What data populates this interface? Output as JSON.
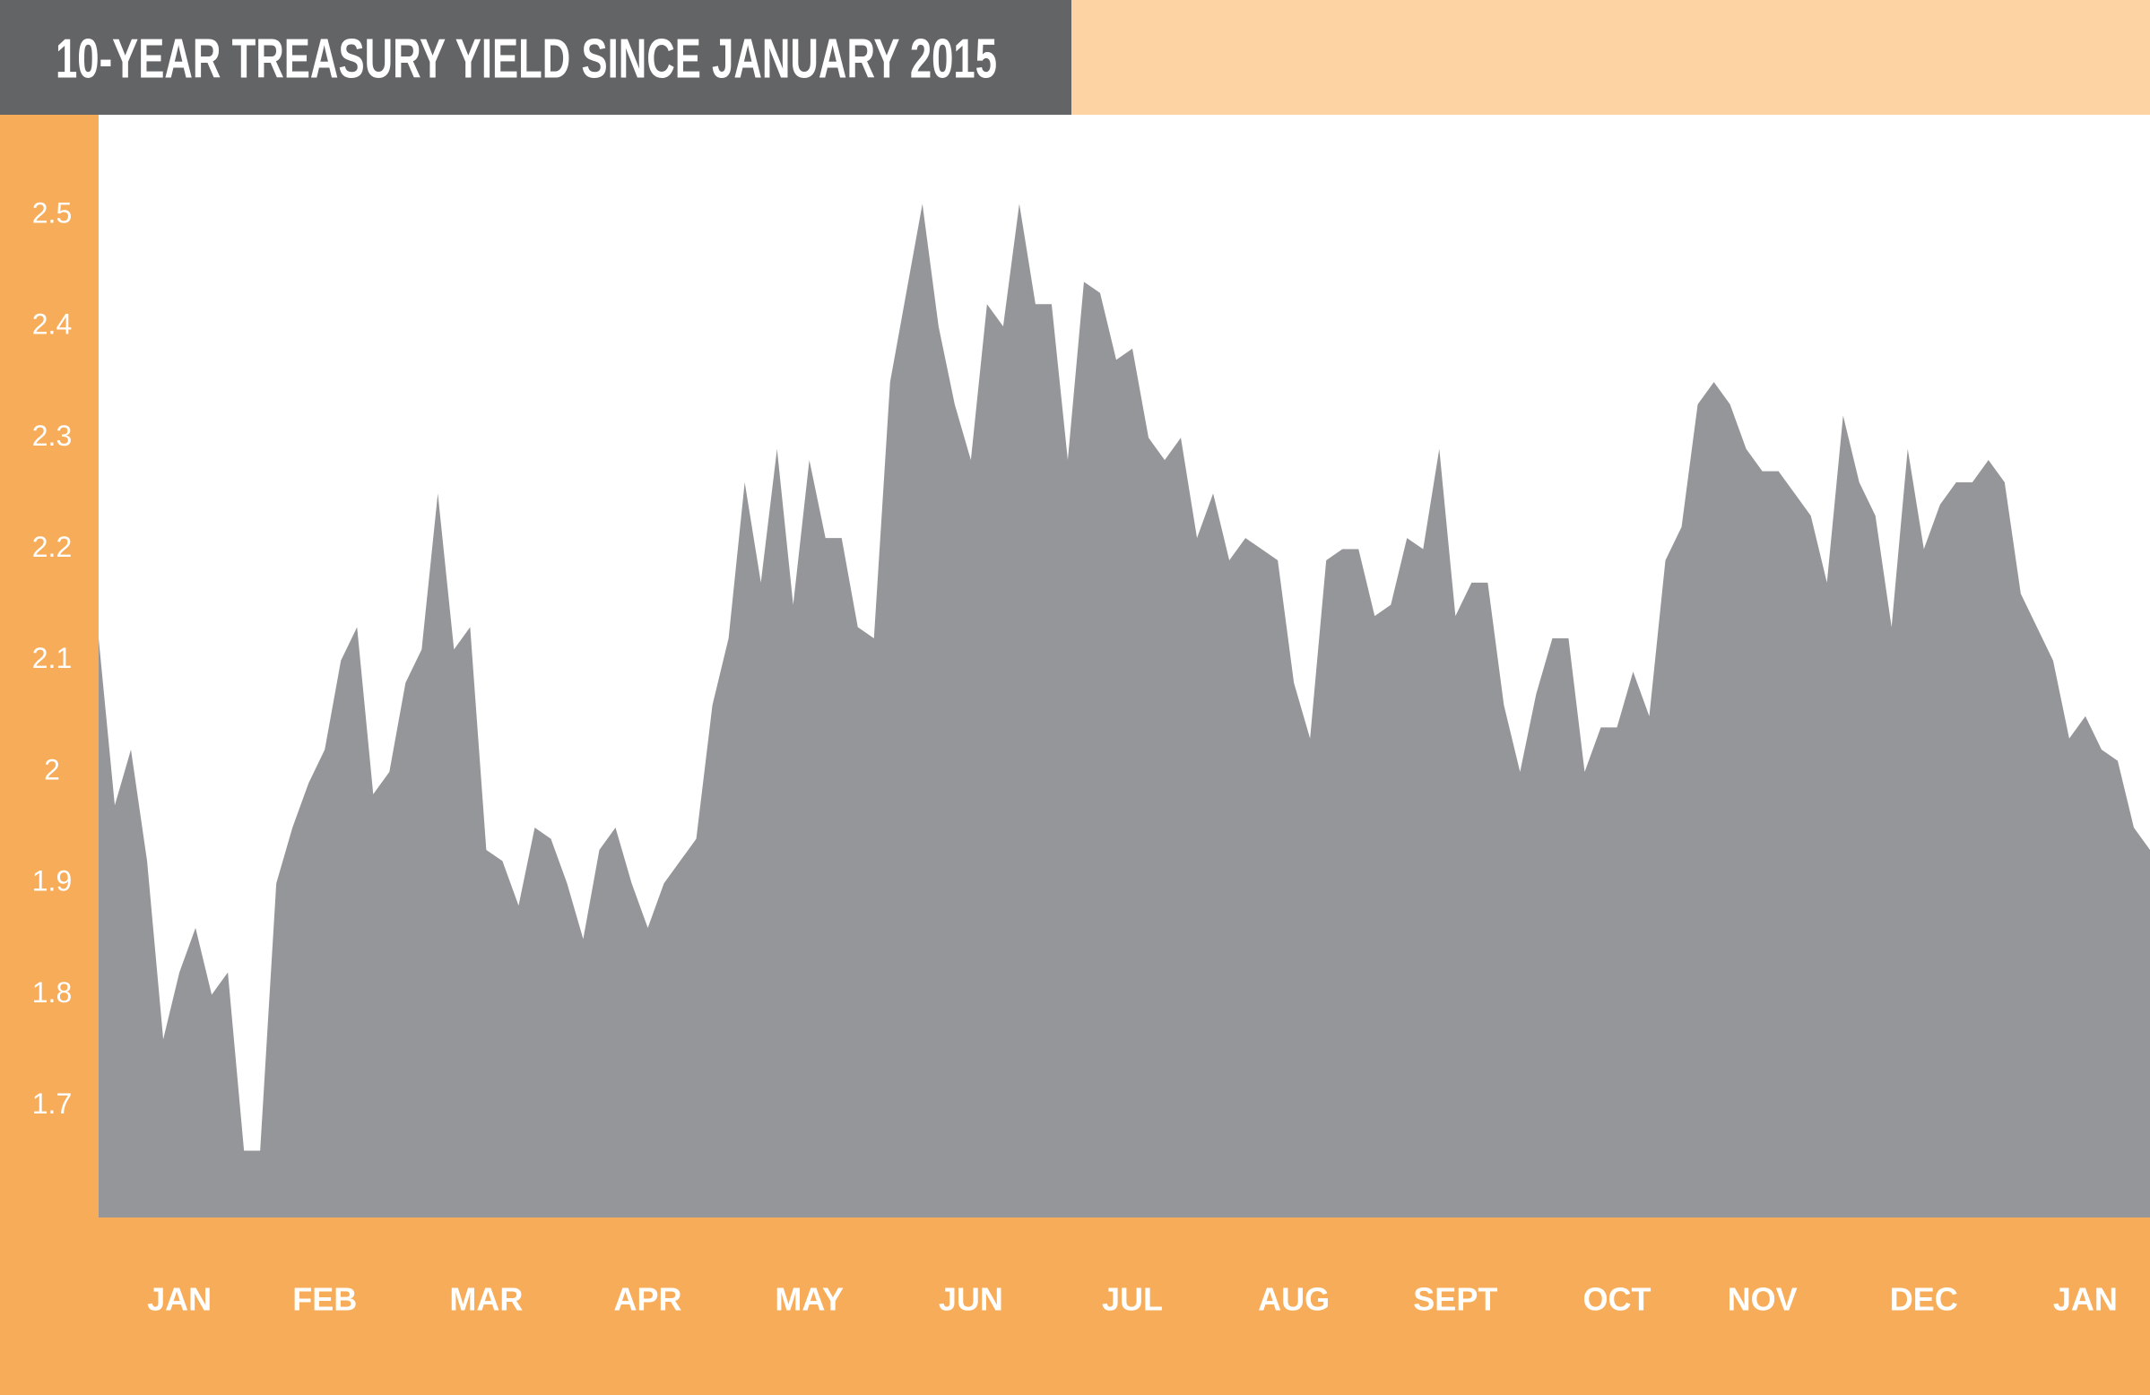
{
  "chart_data": {
    "type": "area",
    "title": "10-YEAR TREASURY YIELD SINCE JANUARY 2015",
    "categories": [
      null,
      null,
      null,
      null,
      null,
      "JAN",
      null,
      null,
      null,
      null,
      null,
      null,
      null,
      null,
      "FEB",
      null,
      null,
      null,
      null,
      null,
      null,
      null,
      null,
      null,
      "MAR",
      null,
      null,
      null,
      null,
      null,
      null,
      null,
      null,
      null,
      "APR",
      null,
      null,
      null,
      null,
      null,
      null,
      null,
      null,
      null,
      "MAY",
      null,
      null,
      null,
      null,
      null,
      null,
      null,
      null,
      null,
      "JUN",
      null,
      null,
      null,
      null,
      null,
      null,
      null,
      null,
      null,
      "JUL",
      null,
      null,
      null,
      null,
      null,
      null,
      null,
      null,
      null,
      "AUG",
      null,
      null,
      null,
      null,
      null,
      null,
      null,
      null,
      null,
      "SEPT",
      null,
      null,
      null,
      null,
      null,
      null,
      null,
      null,
      null,
      "OCT",
      null,
      null,
      null,
      null,
      null,
      null,
      null,
      null,
      "NOV",
      null,
      null,
      null,
      null,
      null,
      null,
      null,
      null,
      null,
      "DEC",
      null,
      null,
      null,
      null,
      null,
      null,
      null,
      null,
      null,
      "JAN",
      null,
      null,
      null,
      null
    ],
    "values": [
      2.12,
      1.97,
      2.02,
      1.92,
      1.76,
      1.82,
      1.86,
      1.8,
      1.82,
      1.66,
      1.66,
      1.9,
      1.95,
      1.99,
      2.02,
      2.1,
      2.13,
      1.98,
      2.0,
      2.08,
      2.11,
      2.25,
      2.11,
      2.13,
      1.93,
      1.92,
      1.88,
      1.95,
      1.94,
      1.9,
      1.85,
      1.93,
      1.95,
      1.9,
      1.86,
      1.9,
      1.92,
      1.94,
      2.06,
      2.12,
      2.26,
      2.17,
      2.29,
      2.15,
      2.28,
      2.21,
      2.21,
      2.13,
      2.12,
      2.35,
      2.43,
      2.51,
      2.4,
      2.33,
      2.28,
      2.42,
      2.4,
      2.51,
      2.42,
      2.42,
      2.28,
      2.44,
      2.43,
      2.37,
      2.38,
      2.3,
      2.28,
      2.3,
      2.21,
      2.25,
      2.19,
      2.21,
      2.2,
      2.19,
      2.08,
      2.03,
      2.19,
      2.2,
      2.2,
      2.14,
      2.15,
      2.21,
      2.2,
      2.29,
      2.14,
      2.17,
      2.17,
      2.06,
      2.0,
      2.07,
      2.12,
      2.12,
      2.0,
      2.04,
      2.04,
      2.09,
      2.05,
      2.19,
      2.22,
      2.33,
      2.35,
      2.33,
      2.29,
      2.27,
      2.27,
      2.25,
      2.23,
      2.17,
      2.32,
      2.26,
      2.23,
      2.13,
      2.29,
      2.2,
      2.24,
      2.26,
      2.26,
      2.28,
      2.26,
      2.16,
      2.13,
      2.1,
      2.03,
      2.05,
      2.02,
      2.01,
      1.95,
      1.93
    ],
    "color": "#959699",
    "ylim": [
      1.6,
      2.59
    ],
    "yticks": [
      1.7,
      1.8,
      1.9,
      2,
      2.1,
      2.2,
      2.3,
      2.4,
      2.5
    ],
    "grid": false
  }
}
